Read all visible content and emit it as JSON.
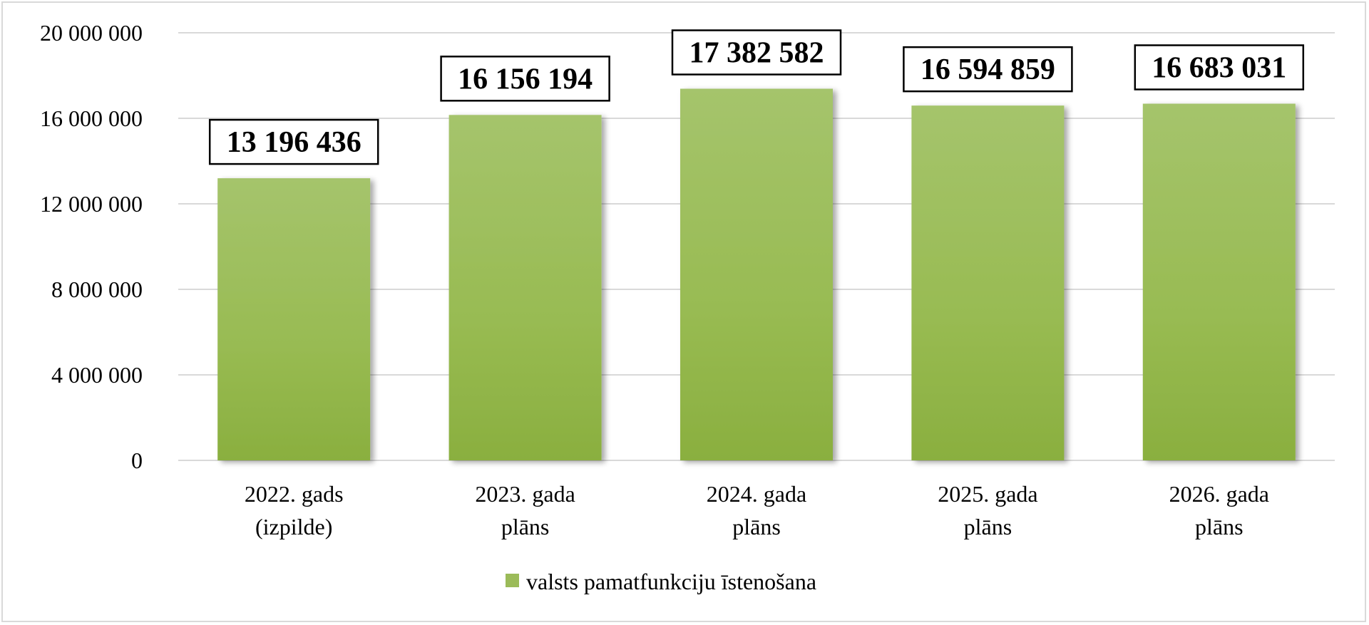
{
  "chart_data": {
    "type": "bar",
    "categories": [
      [
        "2022. gads",
        "(izpilde)"
      ],
      [
        "2023. gada",
        "plāns"
      ],
      [
        "2024. gada",
        "plāns"
      ],
      [
        "2025. gada",
        "plāns"
      ],
      [
        "2026. gada",
        "plāns"
      ]
    ],
    "series": [
      {
        "name": "valsts pamatfunkciju īstenošana",
        "values": [
          13196436,
          16156194,
          17382582,
          16594859,
          16683031
        ],
        "color": "#9bbb59"
      }
    ],
    "data_labels": [
      "13 196 436",
      "16 156 194",
      "17 382 582",
      "16 594 859",
      "16 683 031"
    ],
    "ylim": [
      0,
      20000000
    ],
    "yticks": [
      0,
      4000000,
      8000000,
      12000000,
      16000000,
      20000000
    ],
    "ytick_labels": [
      "0",
      "4 000 000",
      "8 000 000",
      "12 000 000",
      "16 000 000",
      "20 000 000"
    ],
    "grid": true,
    "legend_position": "bottom",
    "title": "",
    "xlabel": "",
    "ylabel": ""
  }
}
